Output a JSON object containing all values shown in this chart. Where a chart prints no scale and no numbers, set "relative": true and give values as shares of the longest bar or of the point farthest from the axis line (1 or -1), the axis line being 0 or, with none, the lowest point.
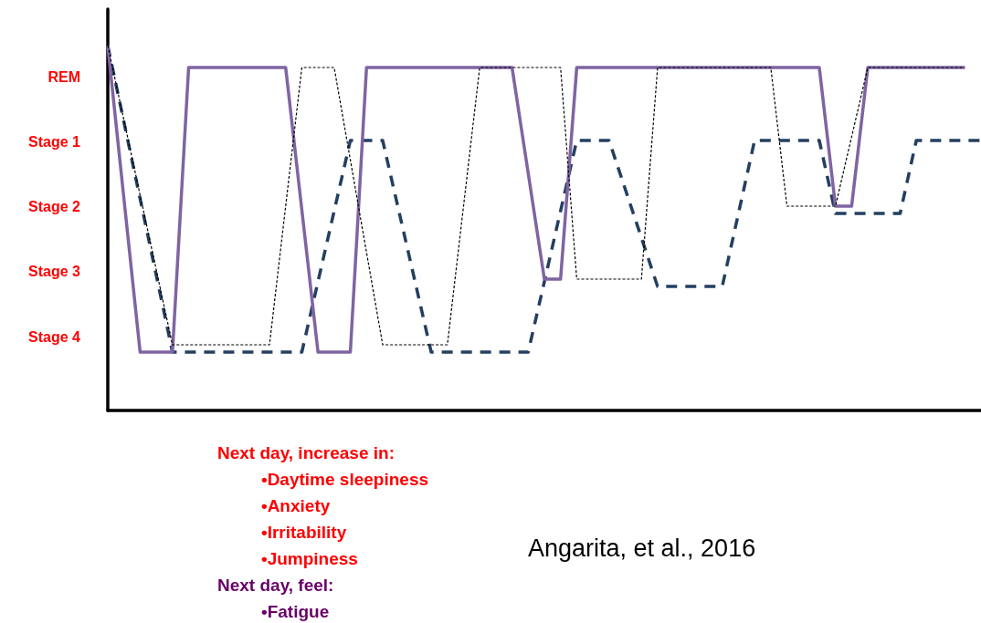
{
  "chart_data": {
    "type": "line",
    "relative": true,
    "categories": [
      null,
      null,
      null,
      null,
      null,
      null,
      null,
      null,
      null,
      null,
      null,
      null,
      null,
      null,
      null,
      null,
      null,
      null,
      null,
      null,
      null,
      null,
      null,
      null,
      null,
      null,
      null,
      null,
      null,
      null,
      null,
      null,
      null,
      null,
      null,
      null,
      null,
      null,
      null,
      null,
      null,
      null,
      null,
      null,
      null,
      null,
      null,
      null,
      null,
      null,
      null,
      null,
      null,
      null,
      null
    ],
    "tick_labels": false,
    "marker": "none",
    "series": [
      {
        "color": "#000000",
        "line_style": "dotted",
        "values": [
          1,
          null,
          null,
          null,
          0.18,
          null,
          null,
          null,
          null,
          null,
          0.18,
          null,
          0.94,
          null,
          0.94,
          null,
          null,
          0.18,
          null,
          null,
          null,
          0.18,
          null,
          0.94,
          null,
          null,
          null,
          null,
          0.94,
          0.36,
          null,
          null,
          null,
          0.36,
          0.94,
          null,
          null,
          null,
          null,
          null,
          null,
          0.94,
          0.56,
          null,
          null,
          0.56,
          null,
          0.94,
          null,
          null,
          null,
          null,
          null,
          0.94,
          null
        ]
      },
      {
        "color": "#243f60",
        "line_style": "dashed",
        "values": [
          1,
          null,
          null,
          null,
          0.16,
          null,
          null,
          null,
          null,
          null,
          null,
          null,
          0.16,
          null,
          null,
          0.74,
          null,
          0.74,
          null,
          null,
          0.16,
          null,
          null,
          null,
          null,
          null,
          0.16,
          null,
          null,
          0.74,
          null,
          0.74,
          null,
          null,
          0.34,
          null,
          null,
          null,
          0.34,
          null,
          0.74,
          null,
          null,
          null,
          0.74,
          0.54,
          null,
          null,
          null,
          0.54,
          0.74,
          null,
          null,
          null,
          0.74
        ]
      },
      {
        "color": "#8064a2",
        "line_style": "solid",
        "values": [
          1,
          null,
          0.16,
          null,
          0.16,
          0.94,
          null,
          null,
          null,
          null,
          null,
          0.94,
          null,
          0.16,
          null,
          0.16,
          0.94,
          null,
          null,
          null,
          null,
          null,
          null,
          null,
          null,
          0.94,
          null,
          0.36,
          0.36,
          0.94,
          null,
          null,
          null,
          null,
          null,
          null,
          null,
          null,
          null,
          null,
          null,
          null,
          null,
          null,
          0.94,
          0.56,
          0.56,
          0.94,
          null,
          null,
          null,
          null,
          null,
          0.94,
          null
        ]
      }
    ],
    "annotations": [
      "REM",
      "Stage 1",
      "Stage 2",
      "Stage 3",
      "Stage 4",
      "Next day, increase in:",
      "•Daytime sleepiness",
      "•Anxiety",
      "•Irritability",
      "•Jumpiness",
      "Next day, feel:",
      "•Fatigue",
      "Angarita, et al., 2016"
    ]
  }
}
